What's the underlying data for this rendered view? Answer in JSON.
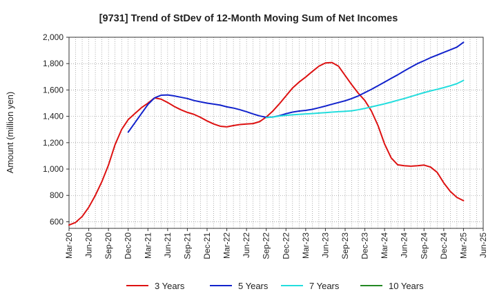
{
  "chart_data": {
    "type": "line",
    "title": "[9731]  Trend of StDev of 12-Month Moving Sum of Net Incomes",
    "xlabel": "",
    "ylabel": "Amount (million yen)",
    "ylim": [
      550,
      2000
    ],
    "yticks": [
      600,
      800,
      1000,
      1200,
      1400,
      1600,
      1800,
      2000
    ],
    "ytick_labels": [
      "600",
      "800",
      "1,000",
      "1,200",
      "1,400",
      "1,600",
      "1,800",
      "2,000"
    ],
    "xlim": [
      "Mar-20",
      "Jun-25"
    ],
    "xtick_labels": [
      "Mar-20",
      "Jun-20",
      "Sep-20",
      "Dec-20",
      "Mar-21",
      "Jun-21",
      "Sep-21",
      "Dec-21",
      "Mar-22",
      "Jun-22",
      "Sep-22",
      "Dec-22",
      "Mar-23",
      "Jun-23",
      "Sep-23",
      "Dec-23",
      "Mar-24",
      "Jun-24",
      "Sep-24",
      "Dec-24",
      "Mar-25",
      "Jun-25"
    ],
    "grid": true,
    "legend_position": "bottom",
    "series": [
      {
        "name": "3 Years",
        "color": "#dd1111",
        "points": [
          [
            "Mar-20",
            575
          ],
          [
            "Apr-20",
            595
          ],
          [
            "May-20",
            640
          ],
          [
            "Jun-20",
            710
          ],
          [
            "Jul-20",
            800
          ],
          [
            "Aug-20",
            905
          ],
          [
            "Sep-20",
            1030
          ],
          [
            "Oct-20",
            1185
          ],
          [
            "Nov-20",
            1300
          ],
          [
            "Dec-20",
            1375
          ],
          [
            "Jan-21",
            1420
          ],
          [
            "Feb-21",
            1465
          ],
          [
            "Mar-21",
            1500
          ],
          [
            "Apr-21",
            1540
          ],
          [
            "May-21",
            1530
          ],
          [
            "Jun-21",
            1505
          ],
          [
            "Jul-21",
            1475
          ],
          [
            "Aug-21",
            1450
          ],
          [
            "Sep-21",
            1430
          ],
          [
            "Oct-21",
            1415
          ],
          [
            "Nov-21",
            1392
          ],
          [
            "Dec-21",
            1365
          ],
          [
            "Jan-22",
            1342
          ],
          [
            "Feb-22",
            1325
          ],
          [
            "Mar-22",
            1320
          ],
          [
            "Apr-22",
            1330
          ],
          [
            "May-22",
            1338
          ],
          [
            "Jun-22",
            1342
          ],
          [
            "Jul-22",
            1345
          ],
          [
            "Aug-22",
            1360
          ],
          [
            "Sep-22",
            1395
          ],
          [
            "Oct-22",
            1440
          ],
          [
            "Nov-22",
            1495
          ],
          [
            "Dec-22",
            1555
          ],
          [
            "Jan-23",
            1615
          ],
          [
            "Feb-23",
            1660
          ],
          [
            "Mar-23",
            1698
          ],
          [
            "Apr-23",
            1740
          ],
          [
            "May-23",
            1780
          ],
          [
            "Jun-23",
            1805
          ],
          [
            "Jul-23",
            1808
          ],
          [
            "Aug-23",
            1780
          ],
          [
            "Sep-23",
            1710
          ],
          [
            "Oct-23",
            1640
          ],
          [
            "Nov-23",
            1575
          ],
          [
            "Dec-23",
            1520
          ],
          [
            "Jan-24",
            1440
          ],
          [
            "Feb-24",
            1330
          ],
          [
            "Mar-24",
            1190
          ],
          [
            "Apr-24",
            1085
          ],
          [
            "May-24",
            1032
          ],
          [
            "Jun-24",
            1025
          ],
          [
            "Jul-24",
            1022
          ],
          [
            "Aug-24",
            1025
          ],
          [
            "Sep-24",
            1030
          ],
          [
            "Oct-24",
            1015
          ],
          [
            "Nov-24",
            975
          ],
          [
            "Dec-24",
            895
          ],
          [
            "Jan-25",
            830
          ],
          [
            "Feb-25",
            785
          ],
          [
            "Mar-25",
            760
          ]
        ]
      },
      {
        "name": "5 Years",
        "color": "#1122cc",
        "points": [
          [
            "Dec-20",
            1280
          ],
          [
            "Jan-21",
            1350
          ],
          [
            "Feb-21",
            1420
          ],
          [
            "Mar-21",
            1490
          ],
          [
            "Apr-21",
            1540
          ],
          [
            "May-21",
            1560
          ],
          [
            "Jun-21",
            1562
          ],
          [
            "Jul-21",
            1555
          ],
          [
            "Aug-21",
            1545
          ],
          [
            "Sep-21",
            1535
          ],
          [
            "Oct-21",
            1520
          ],
          [
            "Nov-21",
            1510
          ],
          [
            "Dec-21",
            1500
          ],
          [
            "Jan-22",
            1493
          ],
          [
            "Feb-22",
            1485
          ],
          [
            "Mar-22",
            1472
          ],
          [
            "Apr-22",
            1463
          ],
          [
            "May-22",
            1450
          ],
          [
            "Jun-22",
            1435
          ],
          [
            "Jul-22",
            1418
          ],
          [
            "Aug-22",
            1403
          ],
          [
            "Sep-22",
            1393
          ],
          [
            "Oct-22",
            1395
          ],
          [
            "Nov-22",
            1405
          ],
          [
            "Dec-22",
            1420
          ],
          [
            "Jan-23",
            1432
          ],
          [
            "Feb-23",
            1440
          ],
          [
            "Mar-23",
            1445
          ],
          [
            "Apr-23",
            1453
          ],
          [
            "May-23",
            1465
          ],
          [
            "Jun-23",
            1478
          ],
          [
            "Jul-23",
            1492
          ],
          [
            "Aug-23",
            1505
          ],
          [
            "Sep-23",
            1518
          ],
          [
            "Oct-23",
            1535
          ],
          [
            "Nov-23",
            1555
          ],
          [
            "Dec-23",
            1580
          ],
          [
            "Jan-24",
            1605
          ],
          [
            "Feb-24",
            1632
          ],
          [
            "Mar-24",
            1660
          ],
          [
            "Apr-24",
            1688
          ],
          [
            "May-24",
            1715
          ],
          [
            "Jun-24",
            1745
          ],
          [
            "Jul-24",
            1773
          ],
          [
            "Aug-24",
            1800
          ],
          [
            "Sep-24",
            1822
          ],
          [
            "Oct-24",
            1845
          ],
          [
            "Nov-24",
            1865
          ],
          [
            "Dec-24",
            1885
          ],
          [
            "Jan-25",
            1905
          ],
          [
            "Feb-25",
            1925
          ],
          [
            "Mar-25",
            1962
          ]
        ]
      },
      {
        "name": "7 Years",
        "color": "#22dddd",
        "points": [
          [
            "Sep-22",
            1390
          ],
          [
            "Oct-22",
            1395
          ],
          [
            "Nov-22",
            1402
          ],
          [
            "Dec-22",
            1408
          ],
          [
            "Jan-23",
            1412
          ],
          [
            "Feb-23",
            1415
          ],
          [
            "Mar-23",
            1418
          ],
          [
            "Apr-23",
            1421
          ],
          [
            "May-23",
            1425
          ],
          [
            "Jun-23",
            1428
          ],
          [
            "Jul-23",
            1432
          ],
          [
            "Aug-23",
            1435
          ],
          [
            "Sep-23",
            1438
          ],
          [
            "Oct-23",
            1442
          ],
          [
            "Nov-23",
            1450
          ],
          [
            "Dec-23",
            1460
          ],
          [
            "Jan-24",
            1472
          ],
          [
            "Feb-24",
            1483
          ],
          [
            "Mar-24",
            1495
          ],
          [
            "Apr-24",
            1508
          ],
          [
            "May-24",
            1522
          ],
          [
            "Jun-24",
            1535
          ],
          [
            "Jul-24",
            1550
          ],
          [
            "Aug-24",
            1565
          ],
          [
            "Sep-24",
            1580
          ],
          [
            "Oct-24",
            1593
          ],
          [
            "Nov-24",
            1605
          ],
          [
            "Dec-24",
            1618
          ],
          [
            "Jan-25",
            1632
          ],
          [
            "Feb-25",
            1648
          ],
          [
            "Mar-25",
            1672
          ]
        ]
      },
      {
        "name": "10 Years",
        "color": "#228822",
        "points": []
      }
    ]
  }
}
